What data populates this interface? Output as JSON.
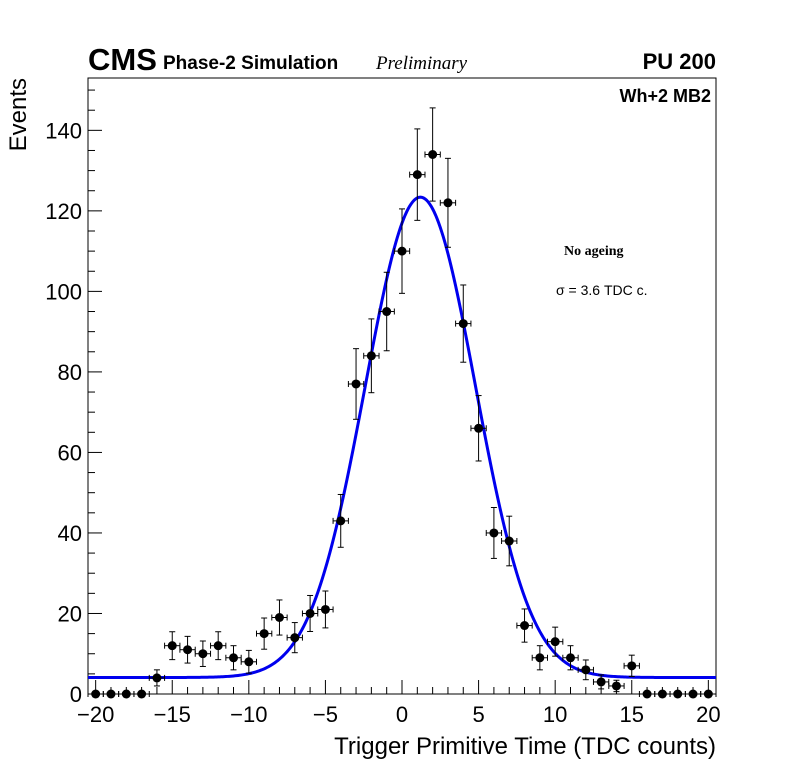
{
  "header": {
    "experiment": "CMS",
    "simulation_label": "Phase-2 Simulation",
    "status_label": "Preliminary",
    "pileup_label": "PU 200"
  },
  "annotations": {
    "chamber": "Wh+2 MB2",
    "condition": "No ageing",
    "sigma_text": "σ = 3.6 TDC c."
  },
  "colors": {
    "fit_line": "#0000ee",
    "data_points": "#000000"
  },
  "chart_data": {
    "type": "scatter",
    "title": "",
    "xlabel": "Trigger Primitive Time (TDC counts)",
    "ylabel": "Events",
    "xlim": [
      -20.5,
      20.5
    ],
    "ylim": [
      0,
      153
    ],
    "xticks": [
      -20,
      -15,
      -10,
      -5,
      0,
      5,
      10,
      15,
      20
    ],
    "xtick_labels": [
      "−20",
      "−15",
      "−10",
      "−5",
      "0",
      "5",
      "10",
      "15",
      "20"
    ],
    "yticks": [
      0,
      20,
      40,
      60,
      80,
      100,
      120,
      140
    ],
    "ytick_labels": [
      "0",
      "20",
      "40",
      "60",
      "80",
      "100",
      "120",
      "140"
    ],
    "series": [
      {
        "name": "Data",
        "style": "points_with_errors",
        "x": [
          -20,
          -19,
          -18,
          -17,
          -16,
          -15,
          -14,
          -13,
          -12,
          -11,
          -10,
          -9,
          -8,
          -7,
          -6,
          -5,
          -4,
          -3,
          -2,
          -1,
          0,
          1,
          2,
          3,
          4,
          5,
          6,
          7,
          8,
          9,
          10,
          11,
          12,
          13,
          14,
          15,
          16,
          17,
          18,
          19,
          20
        ],
        "y": [
          0,
          0,
          0,
          0,
          4,
          12,
          11,
          10,
          12,
          9,
          8,
          15,
          19,
          14,
          20,
          21,
          43,
          77,
          84,
          95,
          110,
          129,
          134,
          122,
          92,
          66,
          40,
          38,
          17,
          9,
          13,
          9,
          6,
          3,
          2,
          7,
          0,
          0,
          0,
          0,
          0
        ]
      },
      {
        "name": "Gaussian fit",
        "style": "line",
        "mean": 1.2,
        "sigma": 3.6,
        "amplitude": 119.3,
        "baseline": 4.1
      }
    ]
  }
}
